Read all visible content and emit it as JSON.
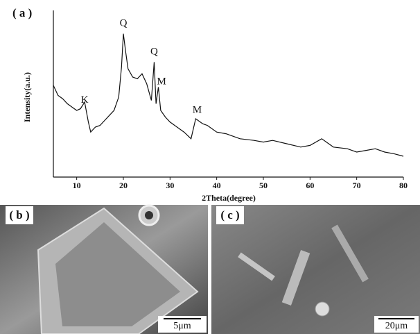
{
  "chart_data": {
    "type": "line",
    "panel_label": "( a )",
    "x_label": "2Theta(degree)",
    "y_label": "Intensity(a.u.)",
    "x": [
      5,
      6,
      7,
      8,
      9,
      10,
      10.8,
      11.7,
      12.5,
      13,
      14,
      15,
      16,
      17,
      18,
      19,
      19.6,
      20,
      20.5,
      21,
      22,
      23,
      24,
      25,
      26,
      26.6,
      27,
      27.5,
      28,
      29,
      30,
      31,
      33,
      34.5,
      35.5,
      37,
      38,
      40,
      42,
      45,
      48,
      50,
      52,
      55,
      58,
      60,
      62.5,
      65,
      68,
      70,
      72,
      74,
      76,
      78,
      80
    ],
    "values": [
      55,
      49,
      47,
      44,
      42,
      40,
      41,
      45,
      33,
      27,
      30,
      31,
      34,
      37,
      40,
      48,
      66,
      86,
      75,
      65,
      60,
      59,
      62,
      56,
      46,
      69,
      44,
      54,
      40,
      36,
      33,
      31,
      27,
      23,
      35,
      32,
      31,
      27,
      26,
      23,
      22,
      21,
      22,
      20,
      18,
      19,
      23,
      18,
      17,
      15,
      16,
      17,
      15,
      14,
      12.5
    ],
    "color": "#111111",
    "xlim": [
      5,
      80
    ],
    "xticks": [
      10,
      20,
      30,
      40,
      50,
      60,
      70,
      80
    ],
    "ylim": [
      0,
      100
    ],
    "annotations": [
      {
        "text": "K",
        "x": 11.7,
        "y": 46
      },
      {
        "text": "Q",
        "x": 20,
        "y": 92
      },
      {
        "text": "Q",
        "x": 26.6,
        "y": 75
      },
      {
        "text": "M",
        "x": 28.2,
        "y": 57
      },
      {
        "text": "M",
        "x": 35.8,
        "y": 40
      }
    ]
  },
  "panels": [
    {
      "label": "( b )",
      "scale_bar": "5μm"
    },
    {
      "label": "( c )",
      "scale_bar": "20μm"
    }
  ]
}
